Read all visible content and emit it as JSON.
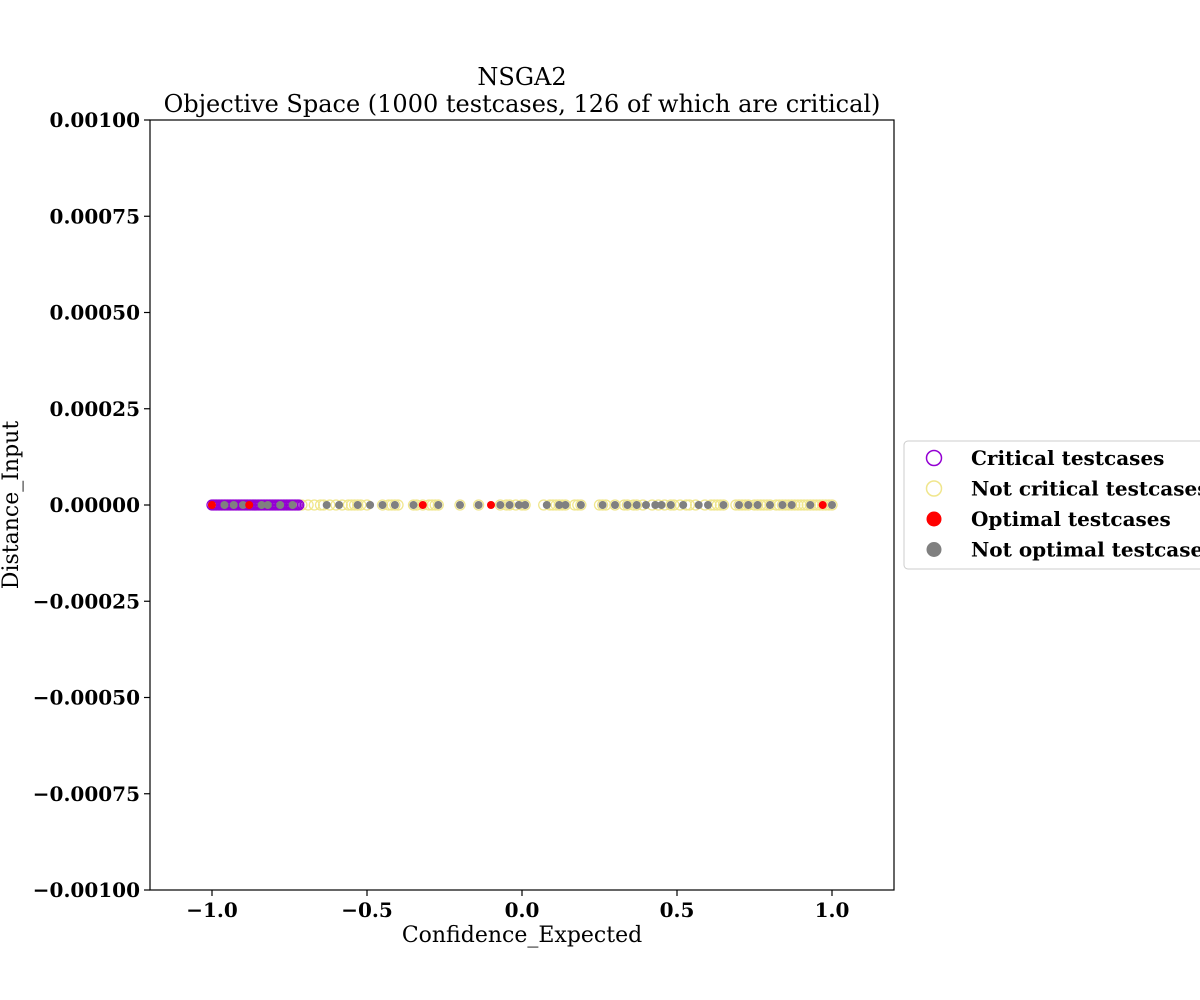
{
  "chart_data": {
    "type": "scatter",
    "title": "NSGA2",
    "subtitle": "Objective Space (1000 testcases, 126 of which are critical)",
    "xlabel": "Confidence_Expected",
    "ylabel": "Distance_Input",
    "xlim": [
      -1.2,
      1.2
    ],
    "ylim": [
      -0.001,
      0.001
    ],
    "x_ticks": [
      -1.0,
      -0.5,
      0.0,
      0.5,
      1.0
    ],
    "x_tick_labels": [
      "−1.0",
      "−0.5",
      "0.0",
      "0.5",
      "1.0"
    ],
    "y_ticks": [
      0.001,
      0.00075,
      0.0005,
      0.00025,
      0.0,
      -0.00025,
      -0.0005,
      -0.00075,
      -0.001
    ],
    "y_tick_labels": [
      "0.00100",
      "0.00075",
      "0.00050",
      "0.00025",
      "0.00000",
      "−0.00025",
      "−0.00050",
      "−0.00075",
      "−0.00100"
    ],
    "grid": false,
    "legend_position": "right, outside plot",
    "legend": [
      {
        "label": "Critical testcases",
        "style": "hollow",
        "color": "#9400D3"
      },
      {
        "label": "Not critical testcases",
        "style": "hollow",
        "color": "#F0E68C"
      },
      {
        "label": "Optimal testcases",
        "style": "filled",
        "color": "#FF0000"
      },
      {
        "label": "Not optimal testcases",
        "style": "filled",
        "color": "#808080"
      }
    ],
    "series": [
      {
        "name": "Critical testcases",
        "color": "#9400D3",
        "y": 0.0,
        "x": [
          -1.0,
          -0.995,
          -0.99,
          -0.985,
          -0.98,
          -0.975,
          -0.97,
          -0.965,
          -0.96,
          -0.955,
          -0.95,
          -0.945,
          -0.94,
          -0.935,
          -0.93,
          -0.925,
          -0.92,
          -0.915,
          -0.91,
          -0.905,
          -0.9,
          -0.895,
          -0.89,
          -0.885,
          -0.88,
          -0.875,
          -0.87,
          -0.865,
          -0.86,
          -0.855,
          -0.85,
          -0.845,
          -0.84,
          -0.835,
          -0.83,
          -0.825,
          -0.82,
          -0.815,
          -0.81,
          -0.805,
          -0.8,
          -0.795,
          -0.79,
          -0.785,
          -0.78,
          -0.775,
          -0.77,
          -0.765,
          -0.76,
          -0.755,
          -0.75,
          -0.745,
          -0.74,
          -0.735,
          -0.73,
          -0.725,
          -0.72
        ]
      },
      {
        "name": "Not critical testcases",
        "color": "#F0E68C",
        "y": 0.0,
        "x": [
          -0.71,
          -0.69,
          -0.67,
          -0.65,
          -0.64,
          -0.62,
          -0.6,
          -0.58,
          -0.56,
          -0.55,
          -0.54,
          -0.53,
          -0.52,
          -0.5,
          -0.45,
          -0.43,
          -0.42,
          -0.41,
          -0.4,
          -0.35,
          -0.34,
          -0.32,
          -0.3,
          -0.29,
          -0.28,
          -0.27,
          -0.2,
          -0.14,
          -0.07,
          -0.05,
          -0.04,
          -0.02,
          0.0,
          0.01,
          0.07,
          0.09,
          0.1,
          0.11,
          0.12,
          0.13,
          0.14,
          0.17,
          0.18,
          0.19,
          0.25,
          0.26,
          0.27,
          0.3,
          0.33,
          0.34,
          0.36,
          0.37,
          0.39,
          0.42,
          0.44,
          0.46,
          0.48,
          0.49,
          0.51,
          0.53,
          0.54,
          0.56,
          0.59,
          0.61,
          0.62,
          0.63,
          0.64,
          0.65,
          0.69,
          0.7,
          0.71,
          0.72,
          0.73,
          0.75,
          0.76,
          0.77,
          0.78,
          0.79,
          0.8,
          0.82,
          0.83,
          0.84,
          0.85,
          0.86,
          0.87,
          0.88,
          0.89,
          0.9,
          0.91,
          0.92,
          0.93,
          0.94,
          0.95,
          0.96,
          0.97,
          0.98,
          0.99,
          1.0
        ]
      },
      {
        "name": "Not optimal testcases",
        "color": "#808080",
        "y": 0.0,
        "x": [
          -0.96,
          -0.93,
          -0.9,
          -0.84,
          -0.82,
          -0.78,
          -0.74,
          -0.63,
          -0.59,
          -0.53,
          -0.49,
          -0.45,
          -0.41,
          -0.35,
          -0.27,
          -0.2,
          -0.14,
          -0.07,
          -0.04,
          -0.01,
          0.01,
          0.08,
          0.12,
          0.14,
          0.19,
          0.26,
          0.3,
          0.34,
          0.37,
          0.4,
          0.43,
          0.45,
          0.48,
          0.52,
          0.57,
          0.6,
          0.65,
          0.7,
          0.73,
          0.76,
          0.8,
          0.84,
          0.87,
          0.93,
          1.0
        ]
      },
      {
        "name": "Optimal testcases",
        "color": "#FF0000",
        "y": 0.0,
        "x": [
          -1.0,
          -0.88,
          -0.32,
          -0.1,
          0.97
        ]
      }
    ]
  }
}
